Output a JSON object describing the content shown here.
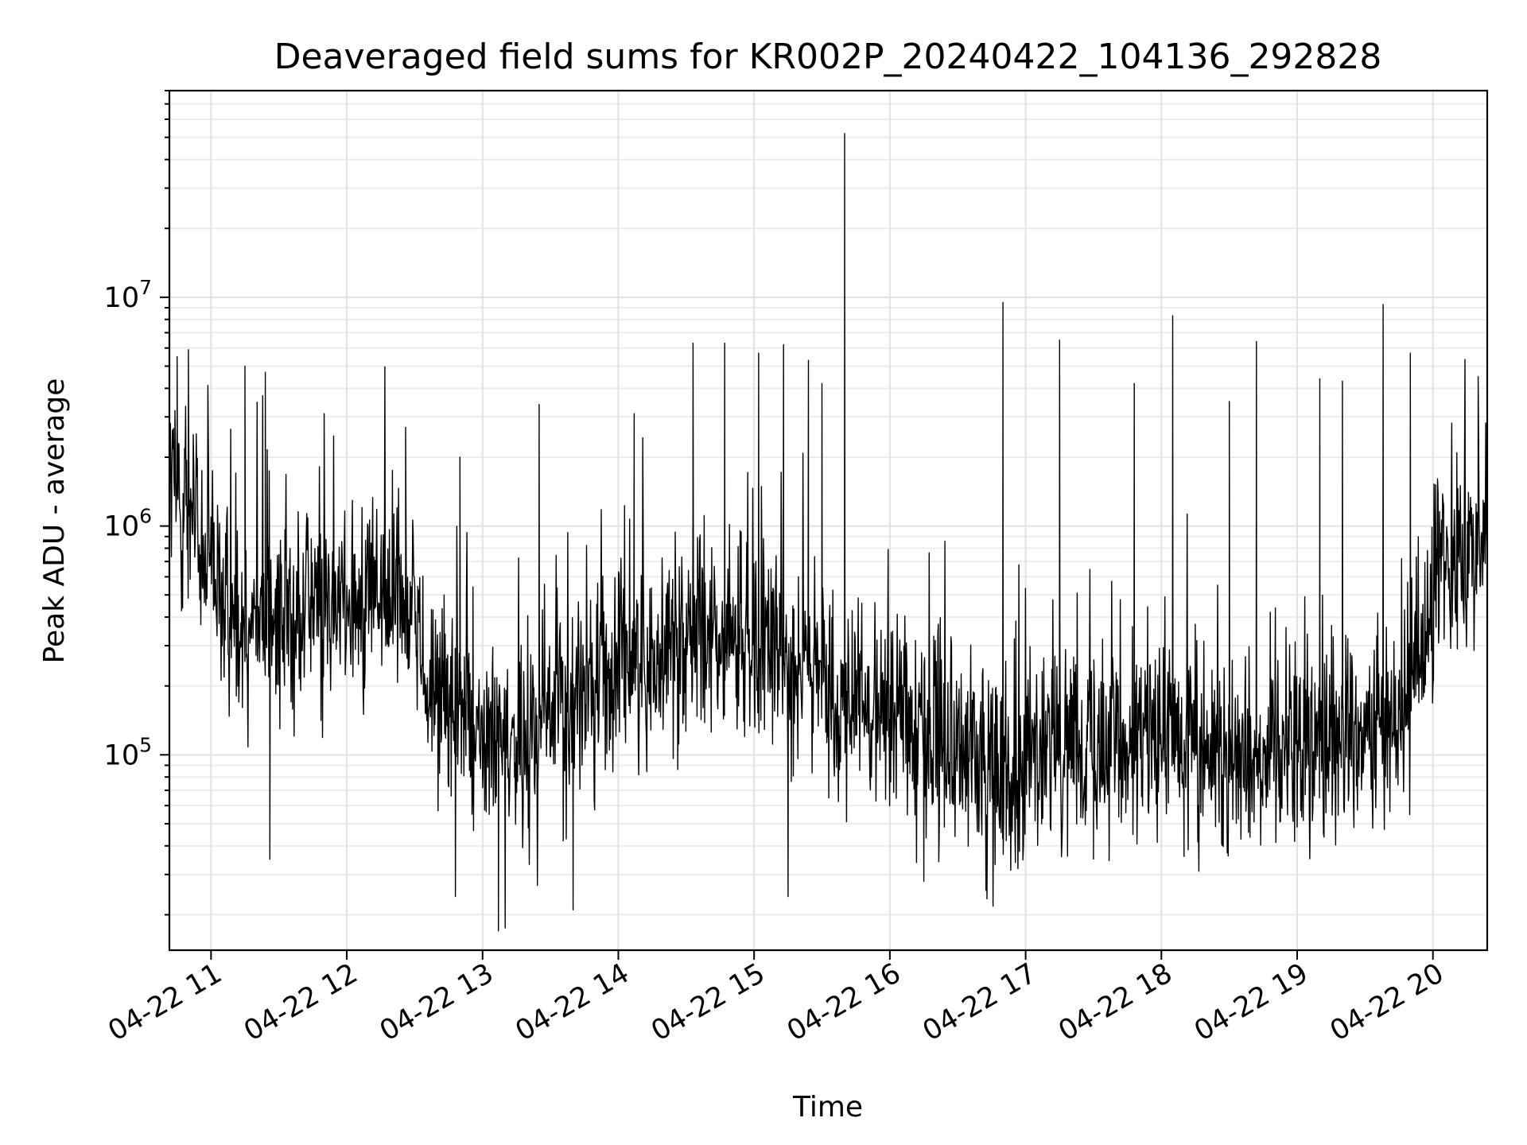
{
  "chart_data": {
    "type": "line",
    "title": "Deaveraged field sums for KR002P_20240422_104136_292828",
    "xlabel": "Time",
    "ylabel": "Peak ADU - average",
    "yscale": "log",
    "xlim": [
      "2024-04-22T10:41:36",
      "2024-04-22T20:24:00"
    ],
    "ylim": [
      14000,
      80000000
    ],
    "xticks": [
      {
        "t": "2024-04-22T11:00",
        "label": "04-22 11"
      },
      {
        "t": "2024-04-22T12:00",
        "label": "04-22 12"
      },
      {
        "t": "2024-04-22T13:00",
        "label": "04-22 13"
      },
      {
        "t": "2024-04-22T14:00",
        "label": "04-22 14"
      },
      {
        "t": "2024-04-22T15:00",
        "label": "04-22 15"
      },
      {
        "t": "2024-04-22T16:00",
        "label": "04-22 16"
      },
      {
        "t": "2024-04-22T17:00",
        "label": "04-22 17"
      },
      {
        "t": "2024-04-22T18:00",
        "label": "04-22 18"
      },
      {
        "t": "2024-04-22T19:00",
        "label": "04-22 19"
      },
      {
        "t": "2024-04-22T20:00",
        "label": "04-22 20"
      }
    ],
    "yticks": [
      {
        "value": 100000,
        "base": "10",
        "exp": "5"
      },
      {
        "value": 1000000,
        "base": "10",
        "exp": "6"
      },
      {
        "value": 10000000,
        "base": "10",
        "exp": "7"
      }
    ],
    "grid": true,
    "line_color": "#000000",
    "baseline": [
      [
        "2024-04-22T10:42",
        1500000
      ],
      [
        "2024-04-22T10:50",
        1300000
      ],
      [
        "2024-04-22T10:56",
        650000
      ],
      [
        "2024-04-22T11:05",
        450000
      ],
      [
        "2024-04-22T11:20",
        400000
      ],
      [
        "2024-04-22T11:40",
        420000
      ],
      [
        "2024-04-22T12:00",
        480000
      ],
      [
        "2024-04-22T12:20",
        480000
      ],
      [
        "2024-04-22T12:30",
        450000
      ],
      [
        "2024-04-22T12:35",
        200000
      ],
      [
        "2024-04-22T12:50",
        150000
      ],
      [
        "2024-04-22T13:10",
        100000
      ],
      [
        "2024-04-22T13:30",
        140000
      ],
      [
        "2024-04-22T14:00",
        250000
      ],
      [
        "2024-04-22T14:30",
        320000
      ],
      [
        "2024-04-22T14:50",
        320000
      ],
      [
        "2024-04-22T15:20",
        250000
      ],
      [
        "2024-04-22T15:40",
        180000
      ],
      [
        "2024-04-22T16:00",
        150000
      ],
      [
        "2024-04-22T16:20",
        110000
      ],
      [
        "2024-04-22T16:40",
        85000
      ],
      [
        "2024-04-22T17:00",
        95000
      ],
      [
        "2024-04-22T17:30",
        120000
      ],
      [
        "2024-04-22T18:00",
        110000
      ],
      [
        "2024-04-22T18:30",
        100000
      ],
      [
        "2024-04-22T19:00",
        120000
      ],
      [
        "2024-04-22T19:30",
        120000
      ],
      [
        "2024-04-22T19:52",
        200000
      ],
      [
        "2024-04-22T20:00",
        450000
      ],
      [
        "2024-04-22T20:05",
        850000
      ],
      [
        "2024-04-22T20:24",
        800000
      ]
    ],
    "spikes": [
      [
        "2024-04-22T10:45",
        5500000
      ],
      [
        "2024-04-22T10:50",
        5900000
      ],
      [
        "2024-04-22T11:15",
        5000000
      ],
      [
        "2024-04-22T11:24",
        4700000
      ],
      [
        "2024-04-22T11:50",
        3100000
      ],
      [
        "2024-04-22T12:26",
        2700000
      ],
      [
        "2024-04-22T12:50",
        2000000
      ],
      [
        "2024-04-22T13:25",
        3400000
      ],
      [
        "2024-04-22T14:07",
        3100000
      ],
      [
        "2024-04-22T14:33",
        6300000
      ],
      [
        "2024-04-22T14:47",
        6300000
      ],
      [
        "2024-04-22T15:02",
        5700000
      ],
      [
        "2024-04-22T15:13",
        6200000
      ],
      [
        "2024-04-22T15:24",
        5300000
      ],
      [
        "2024-04-22T15:30",
        4200000
      ],
      [
        "2024-04-22T15:40",
        52000000
      ],
      [
        "2024-04-22T16:50",
        9500000
      ],
      [
        "2024-04-22T17:15",
        6500000
      ],
      [
        "2024-04-22T17:48",
        4200000
      ],
      [
        "2024-04-22T18:05",
        8300000
      ],
      [
        "2024-04-22T18:30",
        3500000
      ],
      [
        "2024-04-22T18:42",
        6400000
      ],
      [
        "2024-04-22T19:10",
        4400000
      ],
      [
        "2024-04-22T19:20",
        4300000
      ],
      [
        "2024-04-22T19:38",
        9300000
      ],
      [
        "2024-04-22T19:50",
        5700000
      ],
      [
        "2024-04-22T20:20",
        4500000
      ]
    ],
    "dips": [
      [
        "2024-04-22T11:26",
        35000
      ],
      [
        "2024-04-22T12:48",
        24000
      ],
      [
        "2024-04-22T13:07",
        17000
      ],
      [
        "2024-04-22T13:10",
        17500
      ],
      [
        "2024-04-22T13:40",
        21000
      ],
      [
        "2024-04-22T15:15",
        24000
      ],
      [
        "2024-04-22T16:15",
        28000
      ],
      [
        "2024-04-22T17:30",
        35000
      ],
      [
        "2024-04-22T18:10",
        36000
      ]
    ]
  }
}
